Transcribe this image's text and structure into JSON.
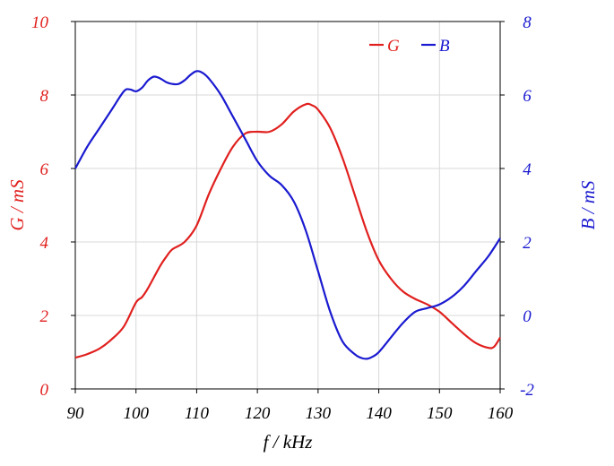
{
  "chart_data": {
    "type": "line",
    "title": "",
    "xlabel": "f / kHz",
    "ylabel_left": "G / mS",
    "ylabel_right": "B / mS",
    "xlim": [
      90,
      160
    ],
    "ylim_left": [
      0,
      10
    ],
    "ylim_right": [
      -2,
      8
    ],
    "x_ticks": [
      90,
      100,
      110,
      120,
      130,
      140,
      150,
      160
    ],
    "y_ticks_left": [
      0,
      2,
      4,
      6,
      8,
      10
    ],
    "y_ticks_right": [
      -2,
      0,
      2,
      4,
      6,
      8
    ],
    "grid": true,
    "legend_position": "top-right",
    "colors": {
      "G": "#e0201e",
      "B": "#1a1ad0"
    },
    "series": [
      {
        "name": "G",
        "axis": "left",
        "x": [
          90,
          92,
          94,
          96,
          98,
          100,
          101,
          102,
          104,
          105,
          106,
          108,
          110,
          112,
          114,
          116,
          118,
          120,
          122,
          124,
          126,
          128,
          129,
          130,
          132,
          134,
          136,
          138,
          140,
          142,
          144,
          146,
          148,
          150,
          152,
          154,
          156,
          158,
          159,
          160
        ],
        "values": [
          0.85,
          0.95,
          1.1,
          1.35,
          1.7,
          2.35,
          2.5,
          2.75,
          3.35,
          3.6,
          3.8,
          4.0,
          4.45,
          5.3,
          6.0,
          6.6,
          6.95,
          7.0,
          7.0,
          7.2,
          7.55,
          7.75,
          7.72,
          7.6,
          7.1,
          6.3,
          5.3,
          4.3,
          3.5,
          3.0,
          2.65,
          2.45,
          2.3,
          2.1,
          1.8,
          1.5,
          1.25,
          1.12,
          1.15,
          1.4
        ]
      },
      {
        "name": "B",
        "axis": "right",
        "x": [
          90,
          92,
          94,
          96,
          98,
          99,
          100,
          101,
          102,
          103,
          104,
          105,
          106,
          107,
          108,
          109,
          110,
          111,
          112,
          114,
          116,
          118,
          120,
          122,
          124,
          126,
          128,
          130,
          132,
          134,
          136,
          137,
          138,
          139,
          140,
          142,
          144,
          146,
          148,
          150,
          152,
          154,
          156,
          158,
          160
        ],
        "values": [
          4.0,
          4.6,
          5.1,
          5.6,
          6.1,
          6.15,
          6.1,
          6.2,
          6.4,
          6.5,
          6.45,
          6.35,
          6.3,
          6.3,
          6.4,
          6.55,
          6.65,
          6.6,
          6.45,
          6.0,
          5.4,
          4.8,
          4.2,
          3.8,
          3.55,
          3.1,
          2.3,
          1.2,
          0.1,
          -0.7,
          -1.05,
          -1.15,
          -1.18,
          -1.12,
          -1.0,
          -0.6,
          -0.2,
          0.1,
          0.2,
          0.3,
          0.5,
          0.8,
          1.2,
          1.6,
          2.1
        ]
      }
    ]
  }
}
